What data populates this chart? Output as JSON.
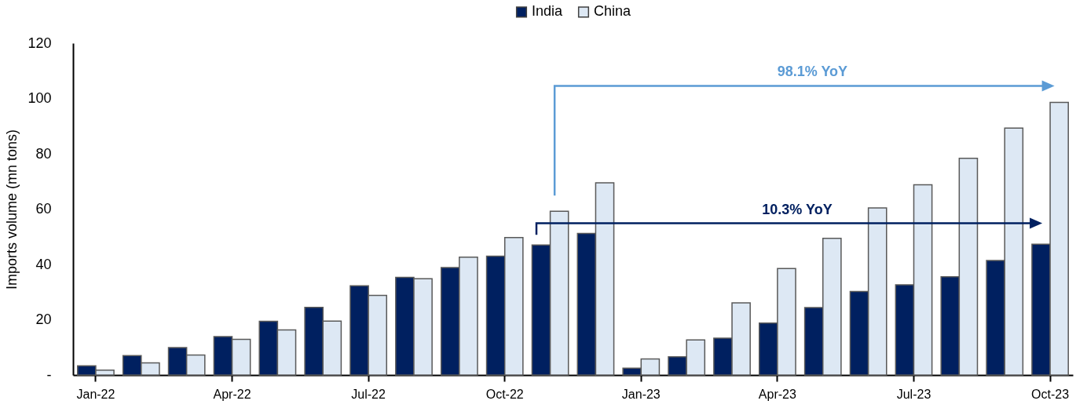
{
  "chart_data": {
    "type": "bar",
    "ylabel": "Imports volume (mn tons)",
    "categories": [
      "Jan-22",
      null,
      null,
      "Apr-22",
      null,
      null,
      "Jul-22",
      null,
      null,
      "Oct-22",
      null,
      null,
      "Jan-23",
      null,
      null,
      "Apr-23",
      null,
      null,
      "Jul-23",
      null,
      null,
      "Oct-23"
    ],
    "series": [
      {
        "name": "India",
        "color": "#002060",
        "values": [
          3.3,
          7.0,
          9.9,
          13.9,
          19.4,
          24.5,
          32.3,
          35.3,
          38.9,
          43.0,
          47.0,
          51.2,
          2.5,
          6.6,
          13.3,
          18.8,
          24.4,
          30.2,
          32.6,
          35.5,
          41.4,
          47.3
        ]
      },
      {
        "name": "China",
        "color": "#dde8f4",
        "values": [
          1.8,
          4.4,
          7.2,
          12.9,
          16.3,
          19.5,
          28.8,
          34.8,
          42.6,
          49.7,
          59.2,
          69.5,
          5.8,
          12.7,
          26.1,
          38.5,
          49.4,
          60.4,
          68.8,
          78.4,
          89.3,
          98.6
        ]
      }
    ],
    "ylim": [
      0,
      120
    ],
    "yticks": [
      {
        "value": 0,
        "label": "-"
      },
      20,
      40,
      60,
      80,
      100,
      120
    ],
    "legend": "top",
    "grid": false,
    "annotations": [
      "98.1% YoY",
      "10.3% YoY"
    ]
  }
}
